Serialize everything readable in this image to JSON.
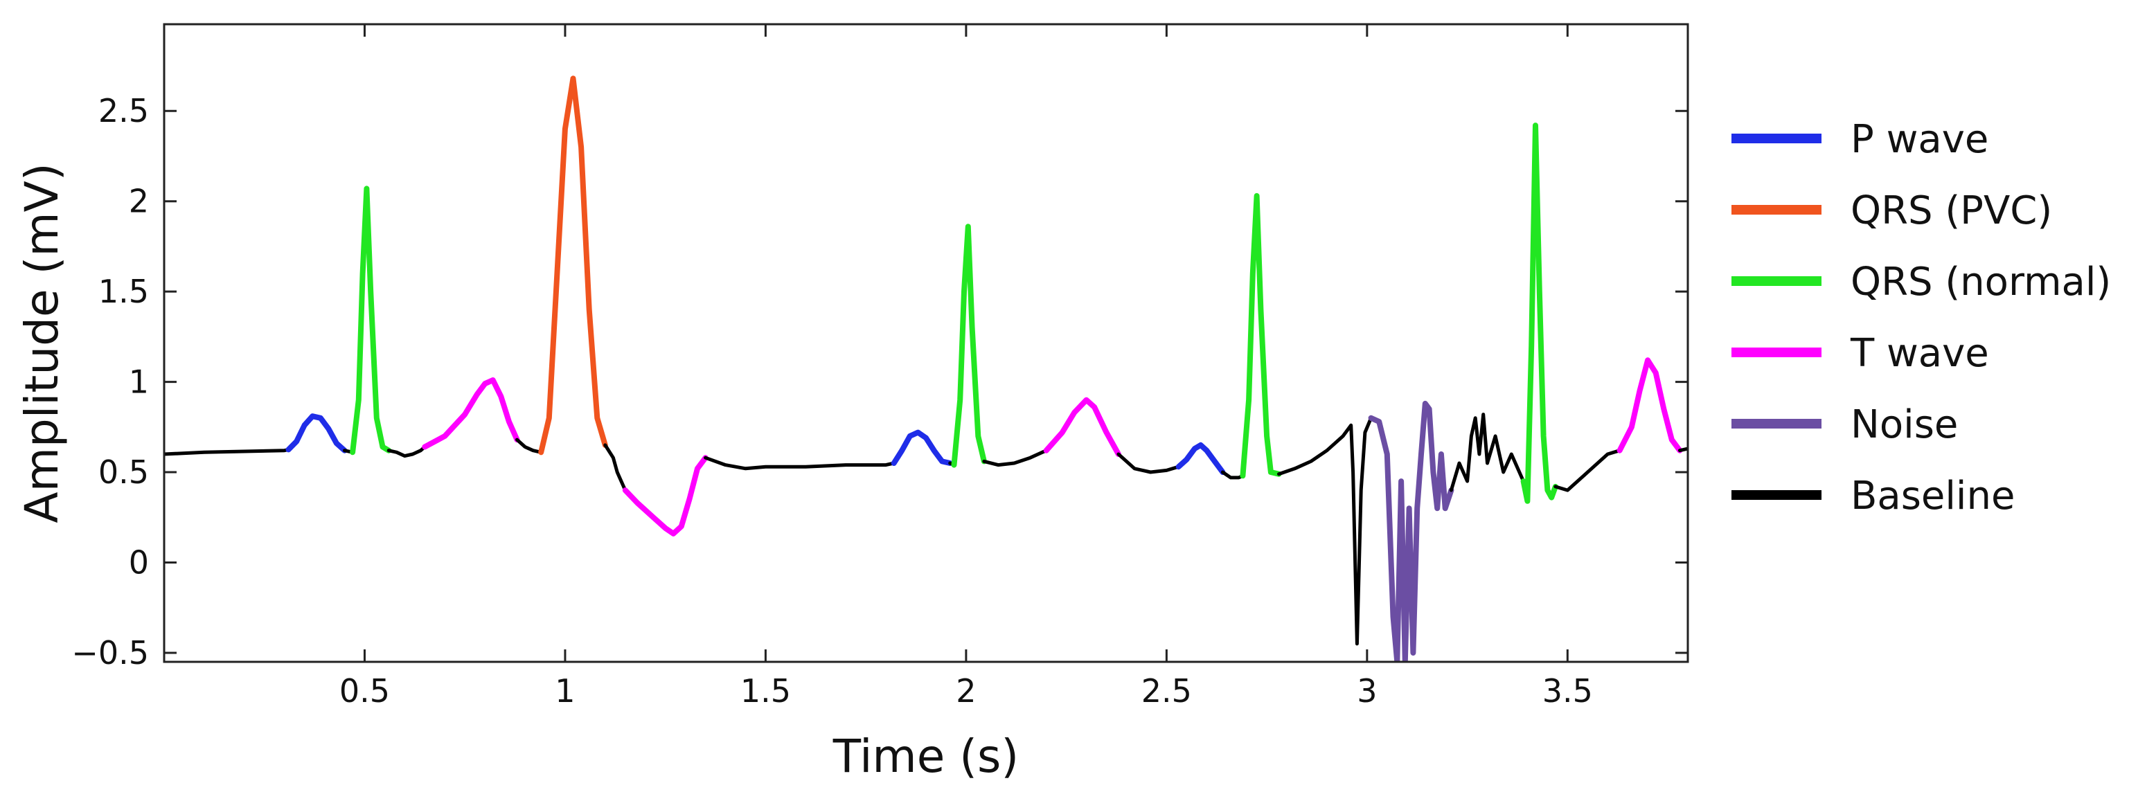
{
  "chart_data": {
    "type": "line",
    "title": "",
    "xlabel": "Time (s)",
    "ylabel": "Amplitude (mV)",
    "xlim": [
      0,
      3.8
    ],
    "ylim": [
      -0.55,
      2.98
    ],
    "xticks": [
      0.5,
      1,
      1.5,
      2,
      2.5,
      3,
      3.5
    ],
    "xtick_labels": [
      "0.5",
      "1",
      "1.5",
      "2",
      "2.5",
      "3",
      "3.5"
    ],
    "yticks": [
      -0.5,
      0,
      0.5,
      1,
      1.5,
      2,
      2.5
    ],
    "ytick_labels": [
      "−0.5",
      "0",
      "0.5",
      "1",
      "1.5",
      "2",
      "2.5"
    ],
    "grid": false,
    "legend_position": "right",
    "series": [
      {
        "name": "P wave",
        "color": "#1f2de8",
        "key": "p_wave"
      },
      {
        "name": "QRS (PVC)",
        "color": "#f0541e",
        "key": "qrs_pvc"
      },
      {
        "name": "QRS (normal)",
        "color": "#22e622",
        "key": "qrs_normal"
      },
      {
        "name": "T wave",
        "color": "#ff00ff",
        "key": "t_wave"
      },
      {
        "name": "Noise",
        "color": "#6b4ea3",
        "key": "noise"
      },
      {
        "name": "Baseline",
        "color": "#000000",
        "key": "baseline"
      }
    ],
    "segments": [
      {
        "series": "baseline",
        "x": [
          0,
          0.1,
          0.2,
          0.3,
          0.31
        ],
        "y": [
          0.6,
          0.61,
          0.615,
          0.62,
          0.625
        ]
      },
      {
        "series": "p_wave",
        "x": [
          0.31,
          0.33,
          0.35,
          0.37,
          0.39,
          0.41,
          0.43,
          0.45
        ],
        "y": [
          0.625,
          0.67,
          0.76,
          0.81,
          0.8,
          0.74,
          0.66,
          0.62
        ]
      },
      {
        "series": "baseline",
        "x": [
          0.45,
          0.47
        ],
        "y": [
          0.62,
          0.61
        ]
      },
      {
        "series": "qrs_normal",
        "x": [
          0.47,
          0.485,
          0.495,
          0.505,
          0.515,
          0.53,
          0.545,
          0.56
        ],
        "y": [
          0.61,
          0.9,
          1.6,
          2.07,
          1.5,
          0.8,
          0.64,
          0.62
        ]
      },
      {
        "series": "baseline",
        "x": [
          0.56,
          0.58,
          0.6,
          0.62,
          0.64,
          0.65
        ],
        "y": [
          0.62,
          0.61,
          0.59,
          0.6,
          0.62,
          0.64
        ]
      },
      {
        "series": "t_wave",
        "x": [
          0.65,
          0.7,
          0.75,
          0.78,
          0.8,
          0.82,
          0.84,
          0.86,
          0.88
        ],
        "y": [
          0.64,
          0.7,
          0.82,
          0.93,
          0.99,
          1.01,
          0.92,
          0.78,
          0.68
        ]
      },
      {
        "series": "baseline",
        "x": [
          0.88,
          0.9,
          0.92,
          0.94
        ],
        "y": [
          0.68,
          0.64,
          0.62,
          0.61
        ]
      },
      {
        "series": "qrs_pvc",
        "x": [
          0.94,
          0.96,
          0.98,
          1.0,
          1.02,
          1.04,
          1.06,
          1.08,
          1.1
        ],
        "y": [
          0.61,
          0.8,
          1.6,
          2.4,
          2.68,
          2.3,
          1.4,
          0.8,
          0.65
        ]
      },
      {
        "series": "baseline",
        "x": [
          1.1,
          1.12,
          1.13,
          1.14,
          1.15
        ],
        "y": [
          0.65,
          0.58,
          0.5,
          0.45,
          0.4
        ]
      },
      {
        "series": "t_wave",
        "x": [
          1.15,
          1.18,
          1.22,
          1.25,
          1.27,
          1.29,
          1.31,
          1.33,
          1.35
        ],
        "y": [
          0.4,
          0.33,
          0.25,
          0.19,
          0.16,
          0.2,
          0.35,
          0.52,
          0.58
        ]
      },
      {
        "series": "baseline",
        "x": [
          1.35,
          1.4,
          1.45,
          1.5,
          1.6,
          1.7,
          1.8,
          1.82
        ],
        "y": [
          0.58,
          0.54,
          0.52,
          0.53,
          0.53,
          0.54,
          0.54,
          0.55
        ]
      },
      {
        "series": "p_wave",
        "x": [
          1.82,
          1.84,
          1.86,
          1.88,
          1.9,
          1.92,
          1.94,
          1.96
        ],
        "y": [
          0.55,
          0.62,
          0.7,
          0.72,
          0.69,
          0.62,
          0.56,
          0.55
        ]
      },
      {
        "series": "baseline",
        "x": [
          1.96,
          1.97
        ],
        "y": [
          0.55,
          0.54
        ]
      },
      {
        "series": "qrs_normal",
        "x": [
          1.97,
          1.985,
          1.995,
          2.005,
          2.015,
          2.03,
          2.045
        ],
        "y": [
          0.54,
          0.9,
          1.5,
          1.86,
          1.3,
          0.7,
          0.56
        ]
      },
      {
        "series": "baseline",
        "x": [
          2.045,
          2.08,
          2.12,
          2.16,
          2.2
        ],
        "y": [
          0.56,
          0.54,
          0.55,
          0.58,
          0.62
        ]
      },
      {
        "series": "t_wave",
        "x": [
          2.2,
          2.24,
          2.27,
          2.3,
          2.32,
          2.35,
          2.38
        ],
        "y": [
          0.62,
          0.72,
          0.83,
          0.9,
          0.86,
          0.72,
          0.6
        ]
      },
      {
        "series": "baseline",
        "x": [
          2.38,
          2.42,
          2.46,
          2.5,
          2.53
        ],
        "y": [
          0.6,
          0.52,
          0.5,
          0.51,
          0.53
        ]
      },
      {
        "series": "p_wave",
        "x": [
          2.53,
          2.55,
          2.57,
          2.585,
          2.6,
          2.62,
          2.64
        ],
        "y": [
          0.53,
          0.57,
          0.63,
          0.65,
          0.62,
          0.56,
          0.5
        ]
      },
      {
        "series": "baseline",
        "x": [
          2.64,
          2.66,
          2.68,
          2.69
        ],
        "y": [
          0.5,
          0.47,
          0.47,
          0.48
        ]
      },
      {
        "series": "qrs_normal",
        "x": [
          2.69,
          2.705,
          2.715,
          2.725,
          2.735,
          2.75,
          2.76,
          2.78
        ],
        "y": [
          0.48,
          0.9,
          1.6,
          2.03,
          1.4,
          0.7,
          0.5,
          0.49
        ]
      },
      {
        "series": "baseline",
        "x": [
          2.78,
          2.82,
          2.86,
          2.9,
          2.94,
          2.96,
          2.965,
          2.975,
          2.985,
          2.995,
          3.01
        ],
        "y": [
          0.49,
          0.52,
          0.56,
          0.62,
          0.7,
          0.76,
          0.5,
          -0.45,
          0.4,
          0.72,
          0.8
        ]
      },
      {
        "series": "noise",
        "x": [
          3.01,
          3.03,
          3.05,
          3.065,
          3.075,
          3.085,
          3.095,
          3.105,
          3.115,
          3.125,
          3.135,
          3.145,
          3.155,
          3.165,
          3.175,
          3.185,
          3.195,
          3.21
        ],
        "y": [
          0.8,
          0.78,
          0.6,
          -0.3,
          -0.55,
          0.45,
          -0.55,
          0.3,
          -0.5,
          0.3,
          0.6,
          0.88,
          0.85,
          0.5,
          0.3,
          0.6,
          0.3,
          0.4
        ]
      },
      {
        "series": "baseline",
        "x": [
          3.21,
          3.23,
          3.25,
          3.26,
          3.27,
          3.28,
          3.29,
          3.3,
          3.32,
          3.34,
          3.36,
          3.38,
          3.39
        ],
        "y": [
          0.4,
          0.55,
          0.45,
          0.7,
          0.8,
          0.6,
          0.82,
          0.55,
          0.7,
          0.5,
          0.6,
          0.5,
          0.45
        ]
      },
      {
        "series": "qrs_normal",
        "x": [
          3.39,
          3.4,
          3.41,
          3.42,
          3.43,
          3.44,
          3.45,
          3.46,
          3.47
        ],
        "y": [
          0.45,
          0.34,
          1.2,
          2.42,
          1.5,
          0.7,
          0.4,
          0.36,
          0.42
        ]
      },
      {
        "series": "baseline",
        "x": [
          3.47,
          3.5,
          3.53,
          3.56,
          3.6,
          3.63
        ],
        "y": [
          0.42,
          0.4,
          0.46,
          0.52,
          0.6,
          0.62
        ]
      },
      {
        "series": "t_wave",
        "x": [
          3.63,
          3.66,
          3.68,
          3.7,
          3.72,
          3.74,
          3.76,
          3.78
        ],
        "y": [
          0.62,
          0.75,
          0.95,
          1.12,
          1.05,
          0.85,
          0.68,
          0.62
        ]
      },
      {
        "series": "baseline",
        "x": [
          3.78,
          3.8
        ],
        "y": [
          0.62,
          0.63
        ]
      }
    ]
  }
}
